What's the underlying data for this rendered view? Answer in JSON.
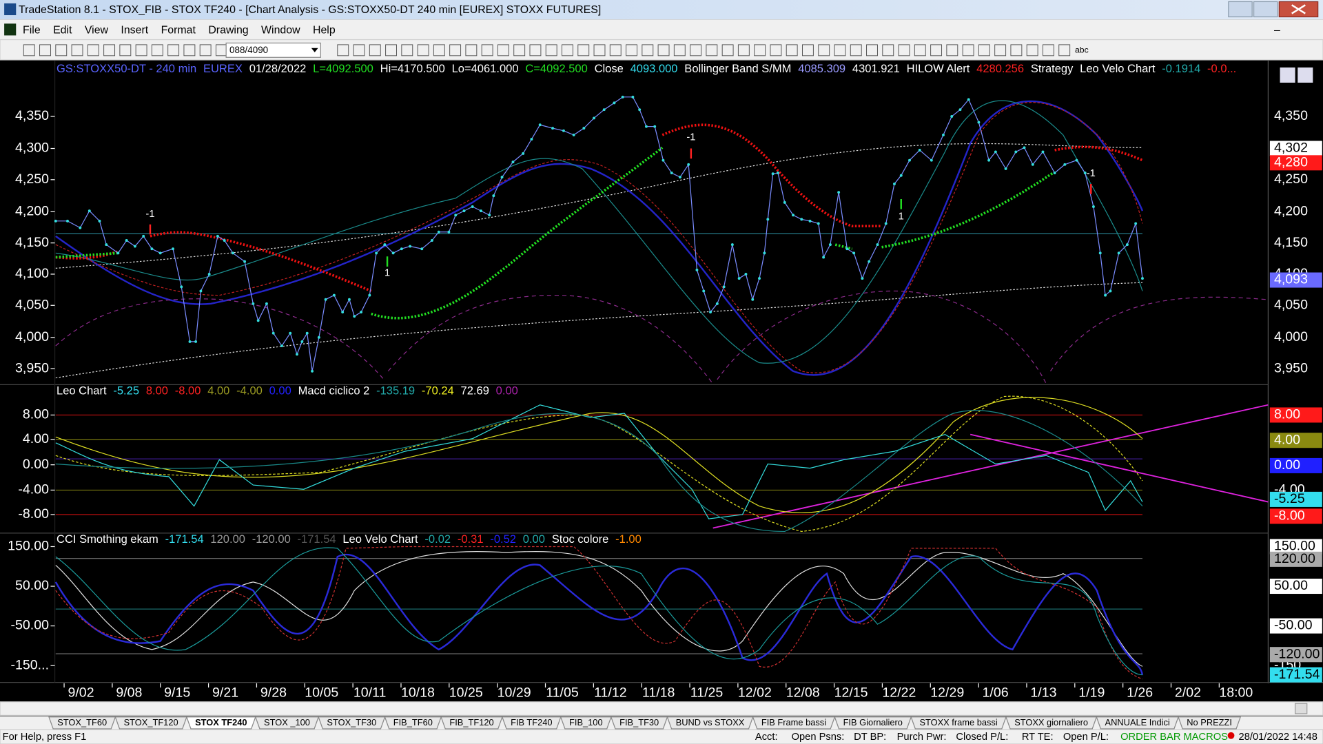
{
  "window": {
    "title": "TradeStation 8.1 - STOX_FIB - STOX TF240 - [Chart Analysis - GS:STOXX50-DT  240 min  [EUREX] STOXX FUTURES]"
  },
  "menu": [
    "File",
    "Edit",
    "View",
    "Insert",
    "Format",
    "Drawing",
    "Window",
    "Help"
  ],
  "toolbar": {
    "symbol_box": "088/4090",
    "text_tool": "abc"
  },
  "price_pane": {
    "header": [
      {
        "text": "GS:STOXX50-DT - 240 min",
        "color": "#5a64ff"
      },
      {
        "text": "EUREX",
        "color": "#5a64ff"
      },
      {
        "text": "01/28/2022",
        "color": "#ffffff"
      },
      {
        "text": "L=4092.500",
        "color": "#22dd22"
      },
      {
        "text": "Hi=4170.500",
        "color": "#ffffff"
      },
      {
        "text": "Lo=4061.000",
        "color": "#ffffff"
      },
      {
        "text": "C=4092.500",
        "color": "#22dd22"
      },
      {
        "text": "Close",
        "color": "#ffffff"
      },
      {
        "text": "4093.000",
        "color": "#33ddee"
      },
      {
        "text": "Bollinger Band S/MM",
        "color": "#ffffff"
      },
      {
        "text": "4085.309",
        "color": "#9a9aff"
      },
      {
        "text": "4301.921",
        "color": "#ffffff"
      },
      {
        "text": "HILOW Alert",
        "color": "#ffffff"
      },
      {
        "text": "4280.256",
        "color": "#ff2222"
      },
      {
        "text": "Strategy",
        "color": "#ffffff"
      },
      {
        "text": "Leo Velo Chart",
        "color": "#ffffff"
      },
      {
        "text": "-0.1914",
        "color": "#22aaaa"
      },
      {
        "text": "-0.0...",
        "color": "#ff2222"
      }
    ],
    "yticks": [
      "4,350",
      "4,300",
      "4,250",
      "4,200",
      "4,150",
      "4,100",
      "4,050",
      "4,000",
      "3,950"
    ],
    "right_boxes": [
      {
        "text": "4,302",
        "color": "#ffffff"
      },
      {
        "text": "4,280",
        "color": "#ff1a1a"
      },
      {
        "text": "4,093",
        "color": "#6a6aff"
      }
    ],
    "markers": [
      "-1",
      "1",
      "-1",
      "1",
      "-1"
    ]
  },
  "leo_pane": {
    "header": [
      {
        "text": "Leo Chart",
        "color": "#ffffff"
      },
      {
        "text": "-5.25",
        "color": "#33ddee"
      },
      {
        "text": "8.00",
        "color": "#ff2222"
      },
      {
        "text": "-8.00",
        "color": "#ff2222"
      },
      {
        "text": "4.00",
        "color": "#9a9a22"
      },
      {
        "text": "-4.00",
        "color": "#9a9a22"
      },
      {
        "text": "0.00",
        "color": "#2222ff"
      },
      {
        "text": "Macd ciclico 2",
        "color": "#ffffff"
      },
      {
        "text": "-135.19",
        "color": "#22aaaa"
      },
      {
        "text": "-70.24",
        "color": "#eeee22"
      },
      {
        "text": "72.69",
        "color": "#ffffff"
      },
      {
        "text": "0.00",
        "color": "#aa22aa"
      }
    ],
    "yticks": [
      "8.00",
      "4.00",
      "0.00",
      "-4.00",
      "-8.00"
    ],
    "right_boxes": [
      {
        "text": "8.00",
        "color": "#ff1a1a"
      },
      {
        "text": "4.00",
        "color": "#8a8a10"
      },
      {
        "text": "0.00",
        "color": "#2020ff"
      },
      {
        "text": "-5.25",
        "color": "#33ddee"
      },
      {
        "text": "-8.00",
        "color": "#ff1a1a"
      }
    ]
  },
  "cci_pane": {
    "header": [
      {
        "text": "CCI Smothing ekam",
        "color": "#ffffff"
      },
      {
        "text": "-171.54",
        "color": "#33ddee"
      },
      {
        "text": "120.00",
        "color": "#999999"
      },
      {
        "text": "-120.00",
        "color": "#999999"
      },
      {
        "text": "-171.54",
        "color": "#555555"
      },
      {
        "text": "Leo Velo Chart",
        "color": "#ffffff"
      },
      {
        "text": "-0.02",
        "color": "#22aaaa"
      },
      {
        "text": "-0.31",
        "color": "#ff2222"
      },
      {
        "text": "-0.52",
        "color": "#2222ff"
      },
      {
        "text": "0.00",
        "color": "#22aaaa"
      },
      {
        "text": "Stoc colore",
        "color": "#ffffff"
      },
      {
        "text": "-1.00",
        "color": "#ff8800"
      }
    ],
    "yticks": [
      "150.00",
      "50.00",
      "-50.00",
      "-150..."
    ],
    "right_boxes": [
      {
        "text": "150.00",
        "color": "#ffffff"
      },
      {
        "text": "120.00",
        "color": "#aaaaaa"
      },
      {
        "text": "50.00",
        "color": "#ffffff"
      },
      {
        "text": "-50.00",
        "color": "#ffffff"
      },
      {
        "text": "-120.00",
        "color": "#aaaaaa"
      },
      {
        "text": "-171.54",
        "color": "#33ddee"
      }
    ]
  },
  "xaxis": [
    "9/02",
    "9/08",
    "9/15",
    "9/21",
    "9/28",
    "10/05",
    "10/11",
    "10/18",
    "10/25",
    "10/29",
    "11/05",
    "11/12",
    "11/18",
    "11/25",
    "12/02",
    "12/08",
    "12/15",
    "12/22",
    "12/29",
    "1/06",
    "1/13",
    "1/19",
    "1/26",
    "2/02",
    "18:00"
  ],
  "tabs": [
    "STOX_TF60",
    "STOX_TF120",
    "STOX TF240",
    "STOX _100",
    "STOX_TF30",
    "FIB_TF60",
    "FIB_TF120",
    "FIB TF240",
    "FIB_100",
    "FIB_TF30",
    "BUND vs STOXX",
    "FIB Frame bassi",
    "FIB Giornaliero",
    "STOXX frame bassi",
    "STOXX giornaliero",
    "ANNUALE Indici",
    "No PREZZI"
  ],
  "status": {
    "help": "For Help, press F1",
    "fields": [
      "Acct:",
      "Open Psns:",
      "DT BP:",
      "Purch Pwr:",
      "Closed P/L:",
      "RT TE:",
      "Open P/L:"
    ],
    "macros": "ORDER BAR MACROS",
    "datetime": "28/01/2022 14:48"
  }
}
